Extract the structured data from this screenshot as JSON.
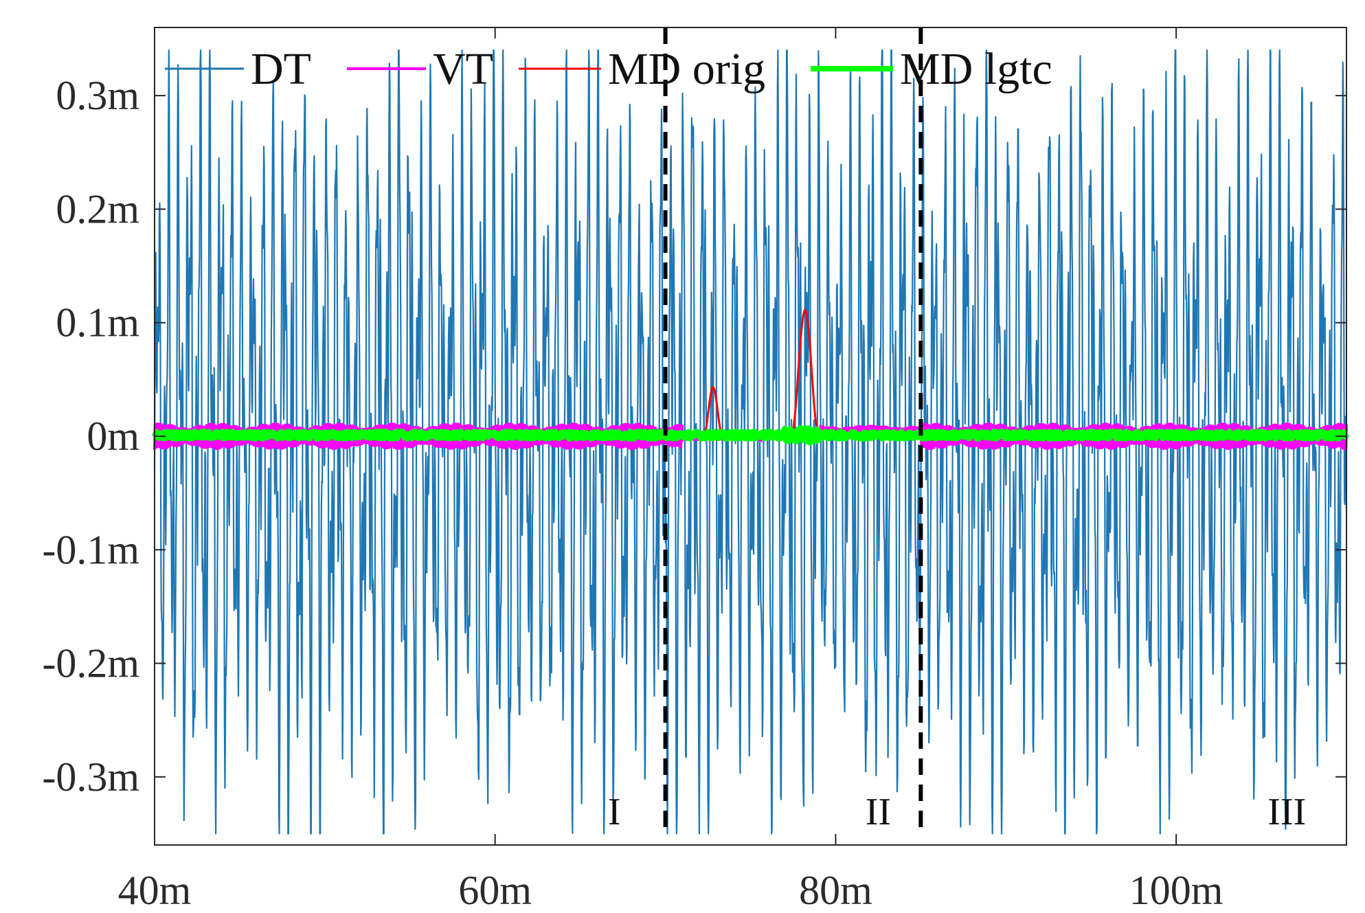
{
  "chart_data": {
    "type": "line",
    "title": "",
    "xlabel": "",
    "ylabel": "",
    "xlim": [
      40,
      110
    ],
    "ylim": [
      -0.36,
      0.36
    ],
    "x_unit": "m",
    "y_unit": "m",
    "x_ticks": [
      40,
      60,
      80,
      100
    ],
    "x_tick_labels": [
      "40m",
      "60m",
      "80m",
      "100m"
    ],
    "y_ticks": [
      0.3,
      0.2,
      0.1,
      0,
      -0.1,
      -0.2,
      -0.3
    ],
    "y_tick_labels": [
      "0.3m",
      "0.2m",
      "0.1m",
      "0m",
      "-0.1m",
      "-0.2m",
      "-0.3m"
    ],
    "grid": false,
    "legend_position": "top",
    "series": [
      {
        "name": "DT",
        "color": "#1f77b4",
        "approx_range": [
          -0.35,
          0.34
        ],
        "description_values": "dense oscillation between about -0.35m and 0.34m across the full range"
      },
      {
        "name": "VT",
        "color": "#ff00ff",
        "approx_range": [
          -0.012,
          0.012
        ]
      },
      {
        "name": "MD orig",
        "color": "#ff0000",
        "peaks": [
          {
            "x": 72.8,
            "y": 0.042
          },
          {
            "x": 78.2,
            "y": 0.11
          }
        ]
      },
      {
        "name": "MD lgtc",
        "color": "#00ff00",
        "approx_range": [
          -0.004,
          0.006
        ]
      }
    ],
    "legend": [
      {
        "label": "DT",
        "color": "#1f77b4"
      },
      {
        "label": "VT",
        "color": "#ff00ff"
      },
      {
        "label": "MD orig",
        "color": "#ff0000"
      },
      {
        "label": "MD lgtc",
        "color": "#00ff00"
      }
    ],
    "vlines": [
      {
        "x": 70
      },
      {
        "x": 85
      }
    ],
    "regions": [
      {
        "label": "I",
        "x": 67
      },
      {
        "label": "II",
        "x": 82.5
      },
      {
        "label": "III",
        "x": 106.5
      }
    ]
  }
}
